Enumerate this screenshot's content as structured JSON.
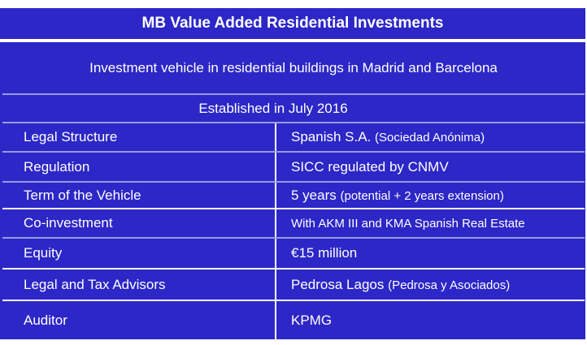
{
  "title": "MB Value Added Residential Investments",
  "description": "Investment vehicle in residential buildings in Madrid and Barcelona",
  "established": "Established in July 2016",
  "rows": [
    {
      "label": "Legal Structure",
      "value": "Spanish S.A.",
      "note": "(Sociedad Anónima)"
    },
    {
      "label": "Regulation",
      "value": "SICC regulated by CNMV",
      "note": ""
    },
    {
      "label": "Term of the Vehicle",
      "value": "5 years",
      "note": "(potential + 2 years extension)"
    },
    {
      "label": "Co-investment",
      "value": "",
      "note": "With AKM III and KMA Spanish Real Estate"
    },
    {
      "label": "Equity",
      "value": "€15 million",
      "note": ""
    },
    {
      "label": "Legal and Tax Advisors",
      "value": "Pedrosa Lagos",
      "note": "(Pedrosa y Asociados)"
    },
    {
      "label": "Auditor",
      "value": "KPMG",
      "note": ""
    }
  ],
  "colors": {
    "background": "#2c27c6",
    "text": "#ffffff"
  }
}
